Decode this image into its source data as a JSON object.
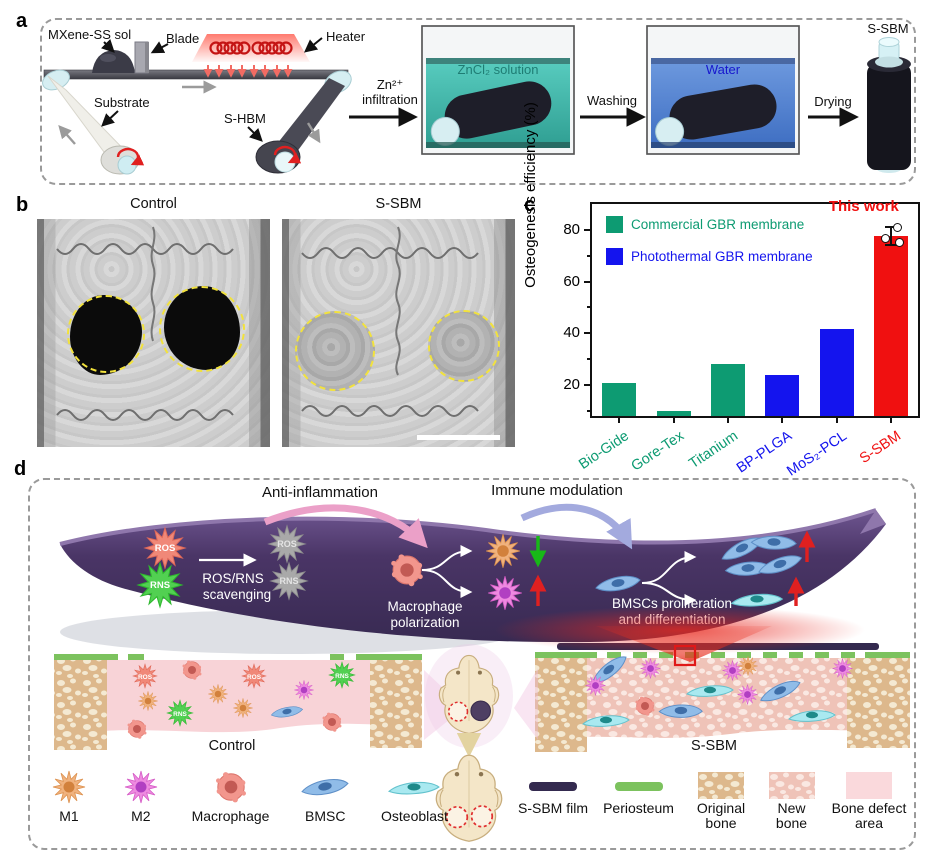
{
  "figure": {
    "panel_a": {
      "label": "a",
      "mxene_label": "MXene-SS sol",
      "blade_label": "Blade",
      "heater_label": "Heater",
      "substrate_label": "Substrate",
      "shbm_label": "S-HBM",
      "step1_line1": "Zn²⁺",
      "step1_line2": "infiltration",
      "tank1_label": "ZnCl₂ solution",
      "step2": "Washing",
      "tank2_label": "Water",
      "step3": "Drying",
      "product_label": "S-SBM",
      "tank1_color": "#1f7d74",
      "tank2_color": "#1717ce"
    },
    "panel_b": {
      "label": "b",
      "left_title": "Control",
      "right_title": "S-SBM"
    },
    "panel_c": {
      "label": "c"
    },
    "panel_d": {
      "label": "d",
      "anti_inflammation": "Anti-inflammation",
      "immune_modulation": "Immune modulation",
      "ros": "ROS",
      "rns": "RNS",
      "scavenging_line1": "ROS/RNS",
      "scavenging_line2": "scavenging",
      "macrophage_line1": "Macrophage",
      "macrophage_line2": "polarization",
      "bmsc_line1": "BMSCs proliferation",
      "bmsc_line2": "and differentiation",
      "control_label": "Control",
      "ssbm_label": "S-SBM",
      "legend_cells": [
        {
          "label": "M1"
        },
        {
          "label": "M2"
        },
        {
          "label": "Macrophage"
        },
        {
          "label": "BMSC"
        },
        {
          "label": "Osteoblast"
        }
      ],
      "legend_materials": [
        {
          "label": "S-SBM film"
        },
        {
          "label": "Periosteum"
        },
        {
          "label": "Original bone"
        },
        {
          "label": "New bone"
        },
        {
          "label": "Bone defect area"
        }
      ]
    }
  },
  "chart_data": {
    "type": "bar",
    "title": "",
    "xlabel": "",
    "ylabel": "Osteogenesis efficiency (%)",
    "categories": [
      "Bio-Gide",
      "Gore-Tex",
      "Titanium",
      "BP-PLGA",
      "MoS₂-PCL",
      "S-SBM"
    ],
    "values": [
      20.8,
      9.8,
      28.2,
      24.0,
      41.5,
      77.5
    ],
    "bar_colors": [
      "#0d9b72",
      "#0d9b72",
      "#0d9b72",
      "#1414ee",
      "#1414ee",
      "#f01010"
    ],
    "ylim": [
      8,
      90
    ],
    "yticks": [
      20,
      40,
      60,
      80
    ],
    "yticks_minor": [
      10,
      30,
      50,
      70
    ],
    "grid": false,
    "legend_position": "upper-left",
    "legend": [
      {
        "label": "Commercial GBR membrane",
        "color": "#0d9b72"
      },
      {
        "label": "Photothermal GBR membrane",
        "color": "#1414ee"
      }
    ],
    "annotation": {
      "text": "This work",
      "color": "#f01010"
    },
    "error_bar": {
      "category": "S-SBM",
      "value": 77.5,
      "plus": 3.5,
      "minus": 3.5
    },
    "scatter_points": [
      81,
      76.5,
      75
    ]
  }
}
